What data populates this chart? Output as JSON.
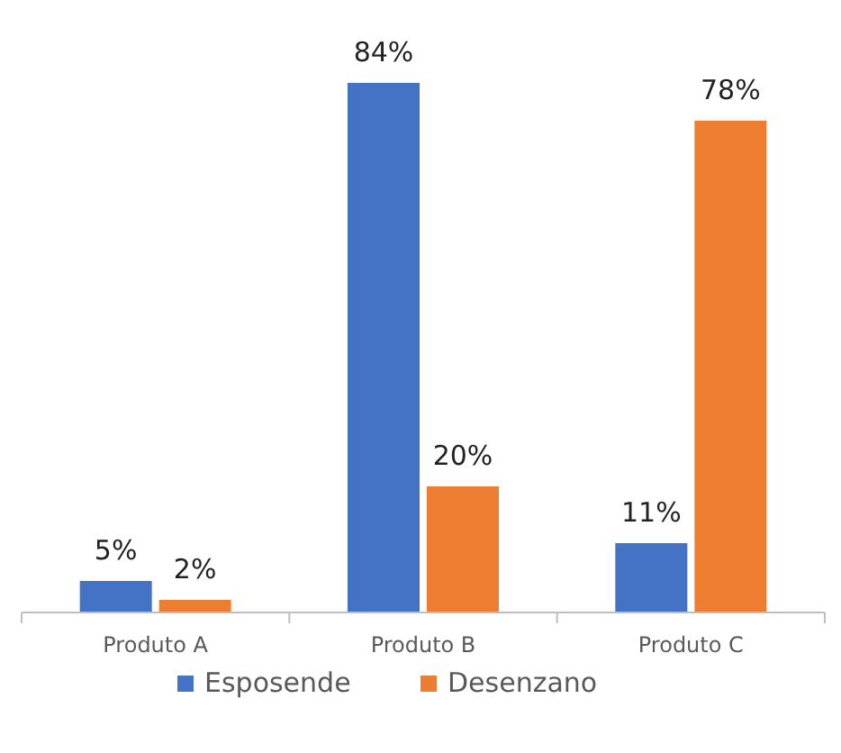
{
  "chart_data": {
    "type": "bar",
    "categories": [
      "Produto A",
      "Produto B",
      "Produto C"
    ],
    "series": [
      {
        "name": "Esposende",
        "color": "#4472c4",
        "values": [
          5,
          84,
          11
        ],
        "value_labels": [
          "5%",
          "84%",
          "11%"
        ]
      },
      {
        "name": "Desenzano",
        "color": "#ed7d31",
        "values": [
          2,
          20,
          78
        ],
        "value_labels": [
          "2%",
          "20%",
          "78%"
        ]
      }
    ],
    "legend": "bottom"
  }
}
